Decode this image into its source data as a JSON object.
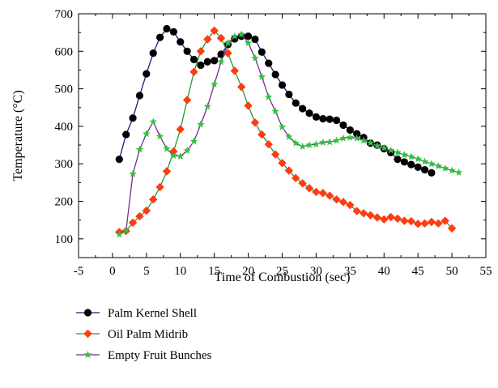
{
  "chart_data": {
    "type": "line",
    "title": "",
    "xlabel": "Time of Combustion (sec)",
    "ylabel": "Temperature (°C)",
    "xlim": [
      -5,
      55
    ],
    "ylim": [
      50,
      700
    ],
    "xticks": [
      -5,
      0,
      5,
      10,
      15,
      20,
      25,
      30,
      35,
      40,
      45,
      50,
      55
    ],
    "yticks": [
      100,
      200,
      300,
      400,
      500,
      600,
      700
    ],
    "grid": false,
    "legend_position": "bottom-left-below-plot",
    "series": [
      {
        "name": "Palm Kernel Shell",
        "line_color": "#1a1f7a",
        "marker_color": "#000000",
        "marker": "circle",
        "x": [
          1,
          2,
          3,
          4,
          5,
          6,
          7,
          8,
          9,
          10,
          11,
          12,
          13,
          14,
          15,
          16,
          17,
          18,
          19,
          20,
          21,
          22,
          23,
          24,
          25,
          26,
          27,
          28,
          29,
          30,
          31,
          32,
          33,
          34,
          35,
          36,
          37,
          38,
          39,
          40,
          41,
          42,
          43,
          44,
          45,
          46,
          47
        ],
        "y": [
          312,
          378,
          422,
          482,
          540,
          595,
          637,
          660,
          652,
          625,
          600,
          578,
          563,
          572,
          575,
          592,
          618,
          633,
          640,
          640,
          632,
          598,
          568,
          538,
          510,
          485,
          462,
          447,
          435,
          425,
          420,
          419,
          416,
          403,
          390,
          380,
          370,
          355,
          350,
          340,
          330,
          312,
          305,
          298,
          291,
          284,
          276
        ]
      },
      {
        "name": "Oil Palm Midrib",
        "line_color": "#1f9a3c",
        "marker_color": "#ff3b0f",
        "marker": "diamond",
        "x": [
          1,
          2,
          3,
          4,
          5,
          6,
          7,
          8,
          9,
          10,
          11,
          12,
          13,
          14,
          15,
          16,
          17,
          18,
          19,
          20,
          21,
          22,
          23,
          24,
          25,
          26,
          27,
          28,
          29,
          30,
          31,
          32,
          33,
          34,
          35,
          36,
          37,
          38,
          39,
          40,
          41,
          42,
          43,
          44,
          45,
          46,
          47,
          48,
          49,
          50
        ],
        "y": [
          118,
          121,
          143,
          160,
          175,
          205,
          238,
          280,
          333,
          392,
          470,
          545,
          600,
          632,
          655,
          635,
          595,
          548,
          505,
          455,
          410,
          378,
          352,
          325,
          302,
          282,
          262,
          248,
          235,
          225,
          222,
          215,
          205,
          198,
          190,
          174,
          168,
          163,
          157,
          152,
          158,
          154,
          148,
          147,
          140,
          141,
          145,
          141,
          148,
          128
        ]
      },
      {
        "name": "Empty Fruit Bunches",
        "line_color": "#7a2a9a",
        "marker_color": "#2ec43a",
        "marker": "star",
        "x": [
          1,
          2,
          3,
          4,
          5,
          6,
          7,
          8,
          9,
          10,
          11,
          12,
          13,
          14,
          15,
          16,
          17,
          18,
          19,
          20,
          21,
          22,
          23,
          24,
          25,
          26,
          27,
          28,
          29,
          30,
          31,
          32,
          33,
          34,
          35,
          36,
          37,
          38,
          39,
          40,
          41,
          42,
          43,
          44,
          45,
          46,
          47,
          48,
          49,
          50,
          51
        ],
        "y": [
          112,
          122,
          273,
          338,
          380,
          412,
          373,
          340,
          322,
          320,
          335,
          360,
          405,
          453,
          512,
          572,
          622,
          640,
          645,
          622,
          582,
          532,
          478,
          440,
          398,
          372,
          355,
          346,
          350,
          352,
          357,
          358,
          362,
          368,
          370,
          368,
          362,
          356,
          348,
          342,
          336,
          330,
          324,
          319,
          313,
          306,
          300,
          294,
          288,
          282,
          277
        ]
      }
    ]
  }
}
